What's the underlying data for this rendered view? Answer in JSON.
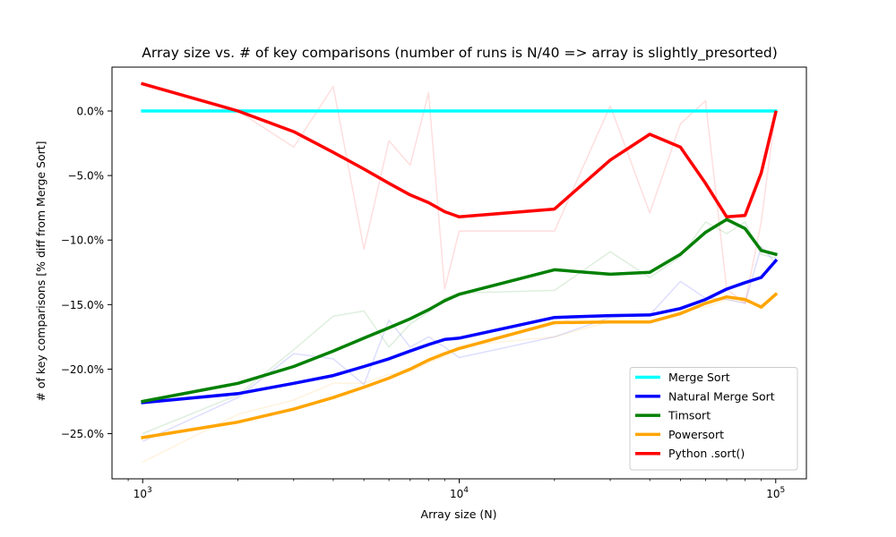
{
  "chart_data": {
    "type": "line",
    "title": "Array size vs. # of key comparisons (number of runs is N/40 => array is slightly_presorted)",
    "xlabel": "Array size (N)",
    "ylabel": "# of key comparisons [% diff from Merge Sort]",
    "xscale": "log",
    "xlim": [
      800,
      125000
    ],
    "ylim": [
      -28.5,
      3.4
    ],
    "x_ticks": [
      {
        "value": 1000,
        "base": "10",
        "exp": "3"
      },
      {
        "value": 10000,
        "base": "10",
        "exp": "4"
      },
      {
        "value": 100000,
        "base": "10",
        "exp": "5"
      }
    ],
    "y_ticks": [
      {
        "value": 0,
        "label": "0.0%"
      },
      {
        "value": -5,
        "label": "−5.0%"
      },
      {
        "value": -10,
        "label": "−10.0%"
      },
      {
        "value": -15,
        "label": "−15.0%"
      },
      {
        "value": -20,
        "label": "−20.0%"
      },
      {
        "value": -25,
        "label": "−25.0%"
      }
    ],
    "grid": false,
    "legend_position": "lower-right",
    "series": [
      {
        "name": "Merge Sort",
        "color": "#00ffff",
        "x": [
          1000,
          2000,
          3000,
          4000,
          5000,
          6000,
          7000,
          8000,
          9000,
          10000,
          20000,
          30000,
          40000,
          50000,
          60000,
          70000,
          80000,
          90000,
          100000
        ],
        "y": [
          0,
          0,
          0,
          0,
          0,
          0,
          0,
          0,
          0,
          0,
          0,
          0,
          0,
          0,
          0,
          0,
          0,
          0,
          0
        ],
        "raw": [
          0,
          0,
          0,
          0,
          0,
          0,
          0,
          0,
          0,
          0,
          0,
          0,
          0,
          0,
          0,
          0,
          0,
          0,
          0
        ]
      },
      {
        "name": "Natural Merge Sort",
        "color": "#0000ff",
        "x": [
          1000,
          2000,
          3000,
          4000,
          5000,
          6000,
          7000,
          8000,
          9000,
          10000,
          20000,
          30000,
          40000,
          50000,
          60000,
          70000,
          80000,
          90000,
          100000
        ],
        "y": [
          -22.6,
          -21.9,
          -21.1,
          -20.5,
          -19.8,
          -19.2,
          -18.6,
          -18.1,
          -17.7,
          -17.6,
          -16.0,
          -15.85,
          -15.8,
          -15.3,
          -14.6,
          -13.8,
          -13.3,
          -12.9,
          -11.6
        ],
        "raw": [
          -25.6,
          -22.2,
          -18.8,
          -19.2,
          -21.2,
          -16.2,
          -18.3,
          -17.5,
          -18.3,
          -19.1,
          -17.5,
          -16.0,
          -15.8,
          -13.2,
          -14.5,
          -14.6,
          -14.9,
          -10.5,
          -11.8
        ]
      },
      {
        "name": "Timsort",
        "color": "#008000",
        "x": [
          1000,
          2000,
          3000,
          4000,
          5000,
          6000,
          7000,
          8000,
          9000,
          10000,
          20000,
          30000,
          40000,
          50000,
          60000,
          70000,
          80000,
          90000,
          100000
        ],
        "y": [
          -22.5,
          -21.1,
          -19.8,
          -18.6,
          -17.6,
          -16.8,
          -16.1,
          -15.4,
          -14.7,
          -14.2,
          -12.3,
          -12.65,
          -12.5,
          -11.1,
          -9.4,
          -8.4,
          -9.1,
          -10.8,
          -11.1
        ],
        "raw": [
          -25.0,
          -22.0,
          -18.5,
          -15.9,
          -15.5,
          -18.3,
          -16.5,
          -15.6,
          -14.5,
          -14.1,
          -13.9,
          -10.9,
          -12.9,
          -11.3,
          -8.6,
          -9.5,
          -8.6,
          -11.1,
          -11.4
        ]
      },
      {
        "name": "Powersort",
        "color": "#ffa500",
        "x": [
          1000,
          2000,
          3000,
          4000,
          5000,
          6000,
          7000,
          8000,
          9000,
          10000,
          20000,
          30000,
          40000,
          50000,
          60000,
          70000,
          80000,
          90000,
          100000
        ],
        "y": [
          -25.3,
          -24.1,
          -23.1,
          -22.2,
          -21.4,
          -20.7,
          -20.0,
          -19.3,
          -18.8,
          -18.4,
          -16.4,
          -16.35,
          -16.35,
          -15.7,
          -14.9,
          -14.4,
          -14.6,
          -15.2,
          -14.2
        ],
        "raw": [
          -27.2,
          -23.5,
          -22.4,
          -21.1,
          -21.1,
          -20.4,
          -20.2,
          -19.5,
          -19.0,
          -18.2,
          -17.5,
          -16.3,
          -16.4,
          -15.5,
          -15.2,
          -14.6,
          -14.8,
          -15.0,
          -14.3
        ]
      },
      {
        "name": "Python .sort()",
        "color": "#ff0000",
        "x": [
          1000,
          2000,
          3000,
          4000,
          5000,
          6000,
          7000,
          8000,
          9000,
          10000,
          20000,
          30000,
          40000,
          50000,
          60000,
          70000,
          80000,
          90000,
          100000
        ],
        "y": [
          2.1,
          0.0,
          -1.6,
          -3.2,
          -4.5,
          -5.6,
          -6.5,
          -7.1,
          -7.8,
          -8.2,
          -7.6,
          -3.8,
          -1.8,
          -2.8,
          -5.6,
          -8.2,
          -8.1,
          -4.8,
          -0.1
        ],
        "raw": [
          2.0,
          0.0,
          -2.8,
          1.9,
          -10.7,
          -2.3,
          -4.2,
          1.4,
          -13.8,
          -9.3,
          -9.3,
          0.4,
          -7.9,
          -1.0,
          0.8,
          -13.8,
          -14.9,
          -8.6,
          0.1
        ]
      }
    ]
  }
}
